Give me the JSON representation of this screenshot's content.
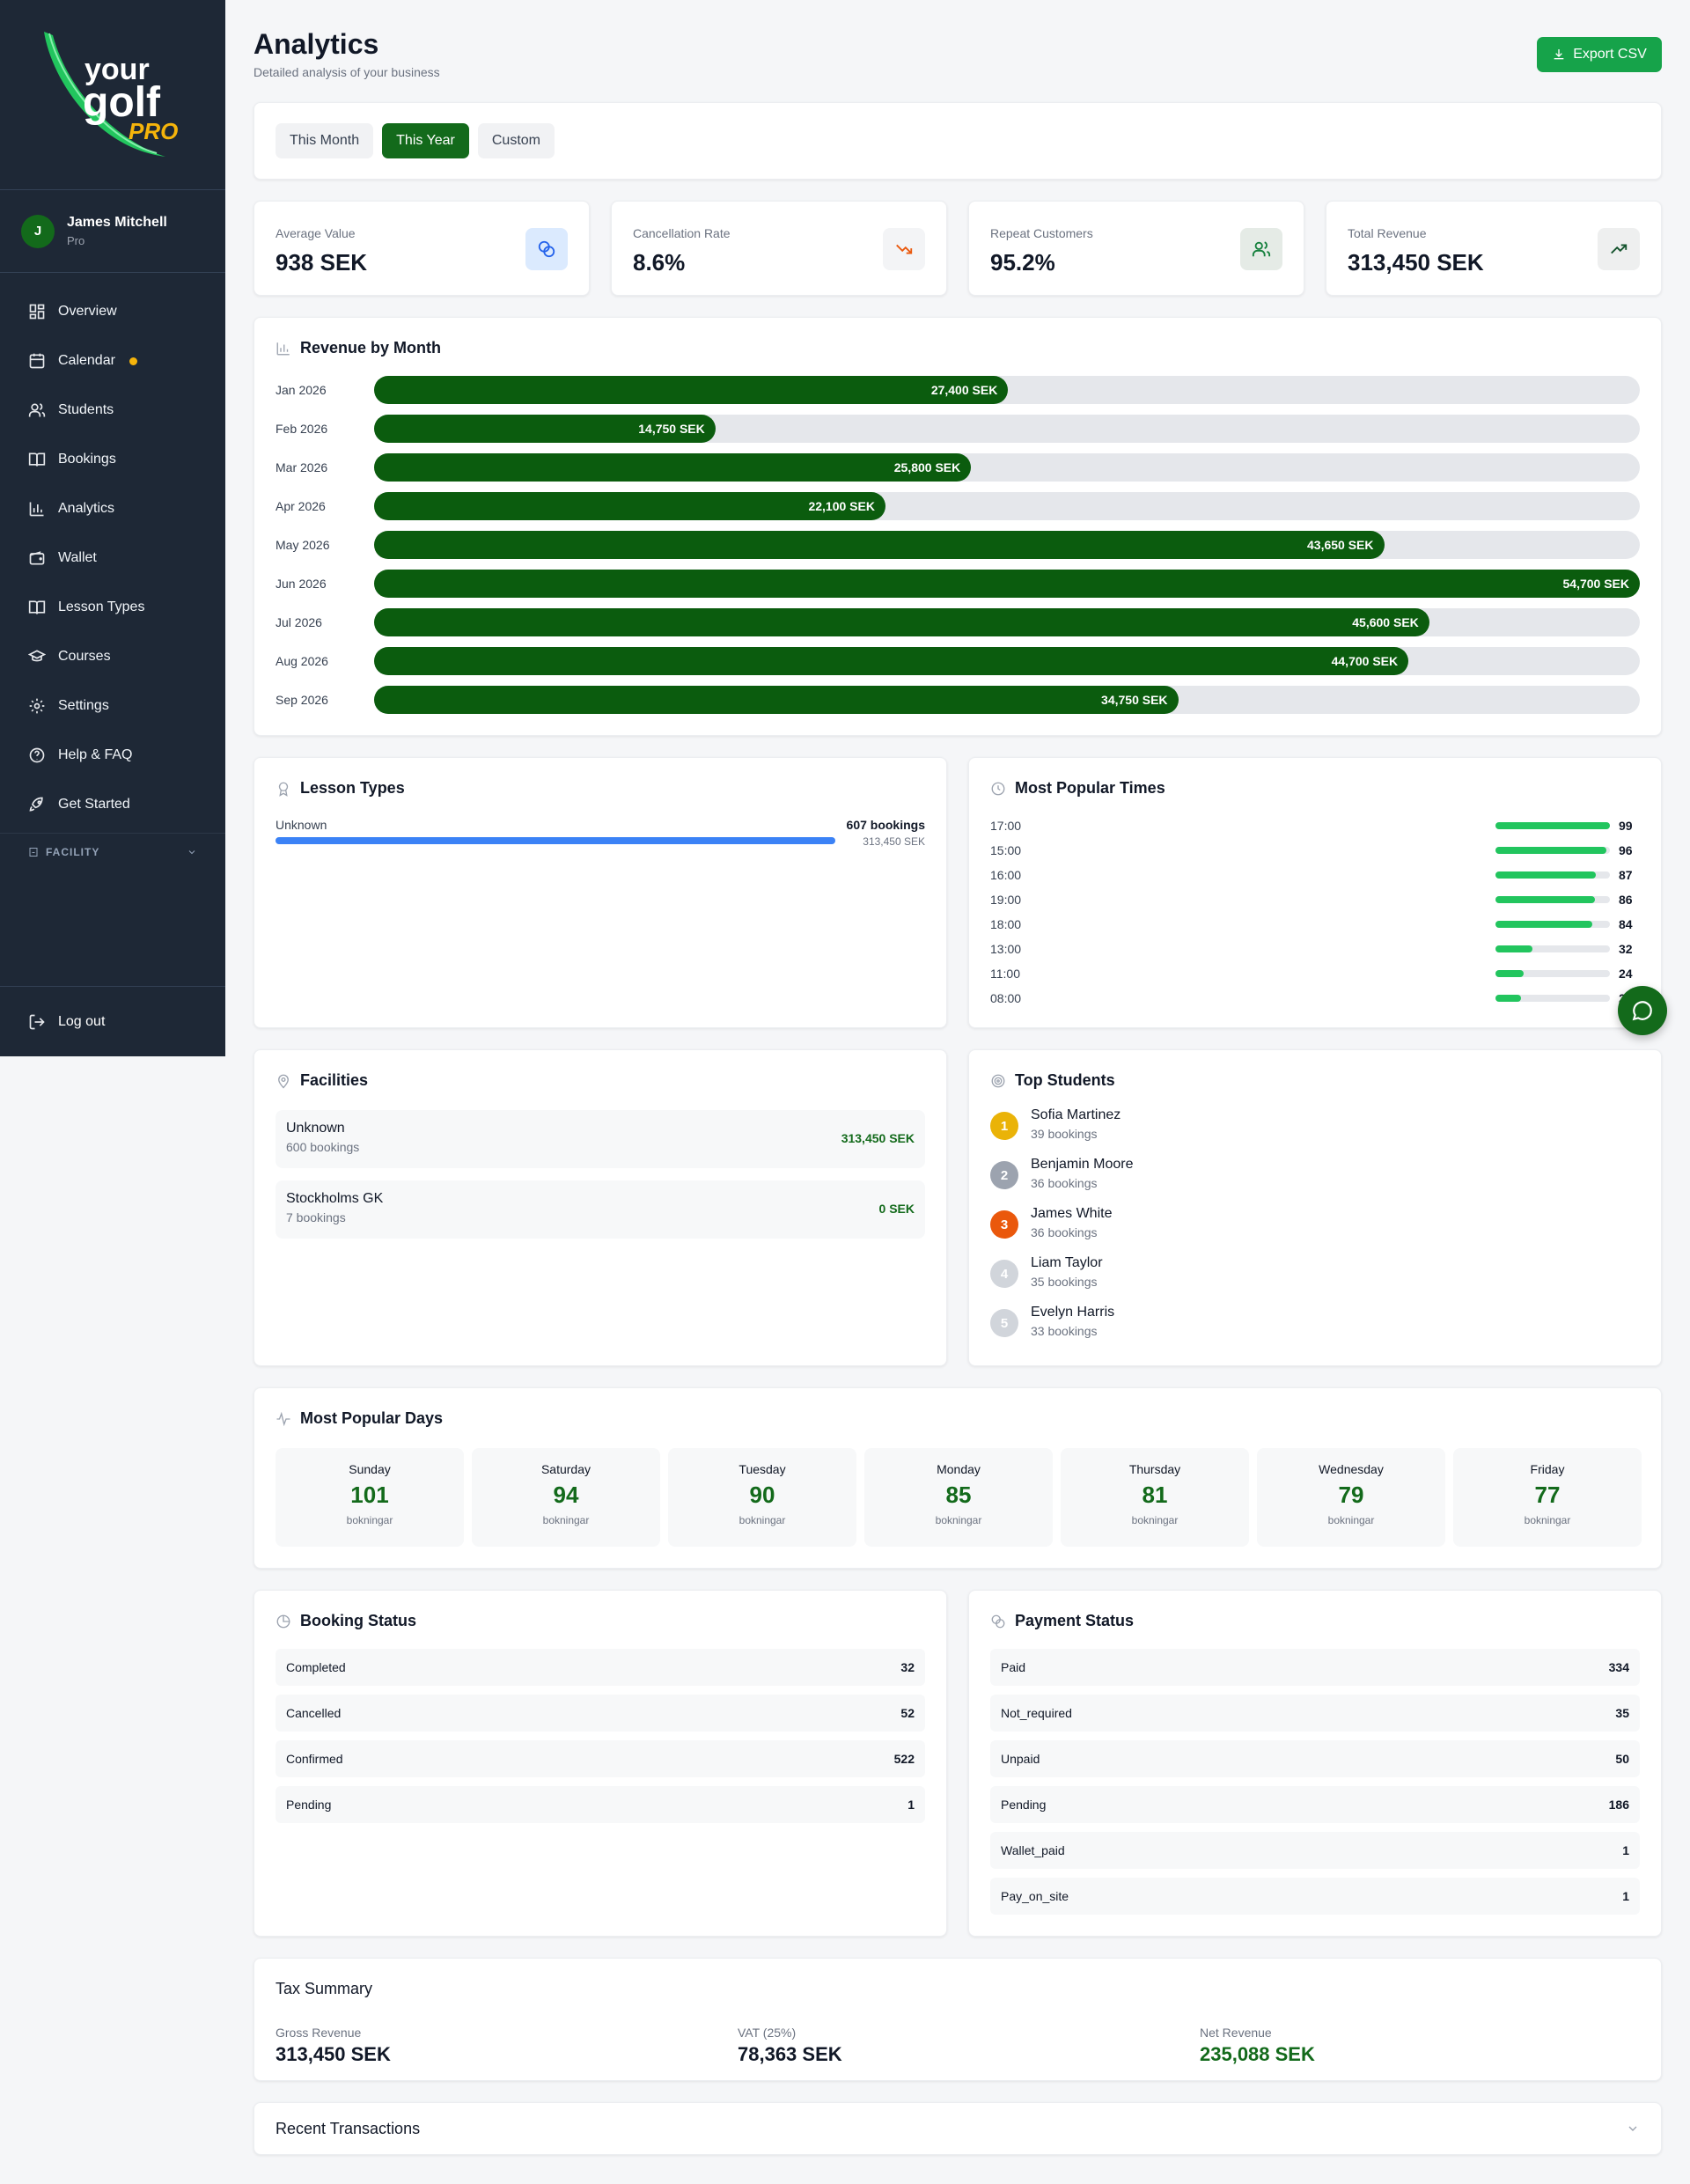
{
  "sidebar": {
    "logo": {
      "line1": "your",
      "line2": "golf",
      "line3": "PRO"
    },
    "user": {
      "initial": "J",
      "name": "James Mitchell",
      "role": "Pro"
    },
    "nav": [
      {
        "label": "Overview",
        "icon": "grid-icon"
      },
      {
        "label": "Calendar",
        "icon": "calendar-icon",
        "badge_color": "#f5b40b"
      },
      {
        "label": "Students",
        "icon": "users-icon"
      },
      {
        "label": "Bookings",
        "icon": "book-icon"
      },
      {
        "label": "Analytics",
        "icon": "bar-chart-icon"
      },
      {
        "label": "Wallet",
        "icon": "wallet-icon"
      },
      {
        "label": "Lesson Types",
        "icon": "book-open-icon"
      },
      {
        "label": "Courses",
        "icon": "graduation-cap-icon"
      },
      {
        "label": "Settings",
        "icon": "gear-icon"
      },
      {
        "label": "Help & FAQ",
        "icon": "help-circle-icon"
      },
      {
        "label": "Get Started",
        "icon": "rocket-icon"
      }
    ],
    "facility_section": "FACILITY",
    "logout": "Log out"
  },
  "header": {
    "title": "Analytics",
    "subtitle": "Detailed analysis of your business",
    "export_label": "Export CSV"
  },
  "periods": {
    "options": [
      "This Month",
      "This Year",
      "Custom"
    ],
    "selected": "This Year"
  },
  "kpis": [
    {
      "label": "Average Value",
      "value": "938 SEK",
      "icon": "coins-icon",
      "icon_color": "#2563eb",
      "icon_bg": "#dbeafe"
    },
    {
      "label": "Cancellation Rate",
      "value": "8.6%",
      "icon": "trending-down-icon",
      "icon_color": "#ea580c",
      "icon_bg": "#f3f4f6"
    },
    {
      "label": "Repeat Customers",
      "value": "95.2%",
      "icon": "users-icon",
      "icon_color": "#15803d",
      "icon_bg": "#e5ebe6"
    },
    {
      "label": "Total Revenue",
      "value": "313,450 SEK",
      "icon": "trending-up-icon",
      "icon_color": "#14532d",
      "icon_bg": "#eeefef"
    }
  ],
  "revenue": {
    "title": "Revenue by Month",
    "months": [
      {
        "label": "Jan 2026",
        "value": 27400,
        "display": "27,400 SEK"
      },
      {
        "label": "Feb 2026",
        "value": 14750,
        "display": "14,750 SEK"
      },
      {
        "label": "Mar 2026",
        "value": 25800,
        "display": "25,800 SEK"
      },
      {
        "label": "Apr 2026",
        "value": 22100,
        "display": "22,100 SEK"
      },
      {
        "label": "May 2026",
        "value": 43650,
        "display": "43,650 SEK"
      },
      {
        "label": "Jun 2026",
        "value": 54700,
        "display": "54,700 SEK"
      },
      {
        "label": "Jul 2026",
        "value": 45600,
        "display": "45,600 SEK"
      },
      {
        "label": "Aug 2026",
        "value": 44700,
        "display": "44,700 SEK"
      },
      {
        "label": "Sep 2026",
        "value": 34750,
        "display": "34,750 SEK"
      }
    ],
    "max": 54700
  },
  "lesson_types": {
    "title": "Lesson Types",
    "items": [
      {
        "name": "Unknown",
        "bookings": "607 bookings",
        "revenue": "313,450 SEK",
        "share": 1.0
      }
    ]
  },
  "popular_times": {
    "title": "Most Popular Times",
    "items": [
      {
        "time": "17:00",
        "count": 99
      },
      {
        "time": "15:00",
        "count": 96
      },
      {
        "time": "16:00",
        "count": 87
      },
      {
        "time": "19:00",
        "count": 86
      },
      {
        "time": "18:00",
        "count": 84
      },
      {
        "time": "13:00",
        "count": 32
      },
      {
        "time": "11:00",
        "count": 24
      },
      {
        "time": "08:00",
        "count": 22
      }
    ],
    "max": 99
  },
  "facilities": {
    "title": "Facilities",
    "items": [
      {
        "name": "Unknown",
        "bookings": "600 bookings",
        "revenue": "313,450 SEK"
      },
      {
        "name": "Stockholms GK",
        "bookings": "7 bookings",
        "revenue": "0 SEK"
      }
    ]
  },
  "top_students": {
    "title": "Top Students",
    "items": [
      {
        "rank": "1",
        "name": "Sofia Martinez",
        "bookings": "39 bookings",
        "color": "#eab308"
      },
      {
        "rank": "2",
        "name": "Benjamin Moore",
        "bookings": "36 bookings",
        "color": "#9ca3af"
      },
      {
        "rank": "3",
        "name": "James White",
        "bookings": "36 bookings",
        "color": "#ea580c"
      },
      {
        "rank": "4",
        "name": "Liam Taylor",
        "bookings": "35 bookings",
        "color": "#d1d5db"
      },
      {
        "rank": "5",
        "name": "Evelyn Harris",
        "bookings": "33 bookings",
        "color": "#d1d5db"
      }
    ]
  },
  "popular_days": {
    "title": "Most Popular Days",
    "unit": "bokningar",
    "items": [
      {
        "day": "Sunday",
        "count": "101"
      },
      {
        "day": "Saturday",
        "count": "94"
      },
      {
        "day": "Tuesday",
        "count": "90"
      },
      {
        "day": "Monday",
        "count": "85"
      },
      {
        "day": "Thursday",
        "count": "81"
      },
      {
        "day": "Wednesday",
        "count": "79"
      },
      {
        "day": "Friday",
        "count": "77"
      }
    ]
  },
  "booking_status": {
    "title": "Booking Status",
    "items": [
      {
        "label": "Completed",
        "count": "32"
      },
      {
        "label": "Cancelled",
        "count": "52"
      },
      {
        "label": "Confirmed",
        "count": "522"
      },
      {
        "label": "Pending",
        "count": "1"
      }
    ]
  },
  "payment_status": {
    "title": "Payment Status",
    "items": [
      {
        "label": "Paid",
        "count": "334"
      },
      {
        "label": "Not_required",
        "count": "35"
      },
      {
        "label": "Unpaid",
        "count": "50"
      },
      {
        "label": "Pending",
        "count": "186"
      },
      {
        "label": "Wallet_paid",
        "count": "1"
      },
      {
        "label": "Pay_on_site",
        "count": "1"
      }
    ]
  },
  "tax": {
    "title": "Tax Summary",
    "gross_label": "Gross Revenue",
    "gross": "313,450 SEK",
    "vat_label": "VAT (25%)",
    "vat": "78,363 SEK",
    "net_label": "Net Revenue",
    "net": "235,088 SEK"
  },
  "recent": {
    "title": "Recent Transactions"
  },
  "colors": {
    "accent": "#136a1b",
    "bar": "#0b5c0e",
    "time_bar": "#22c55e",
    "lesson_bar": "#3b82f6"
  }
}
